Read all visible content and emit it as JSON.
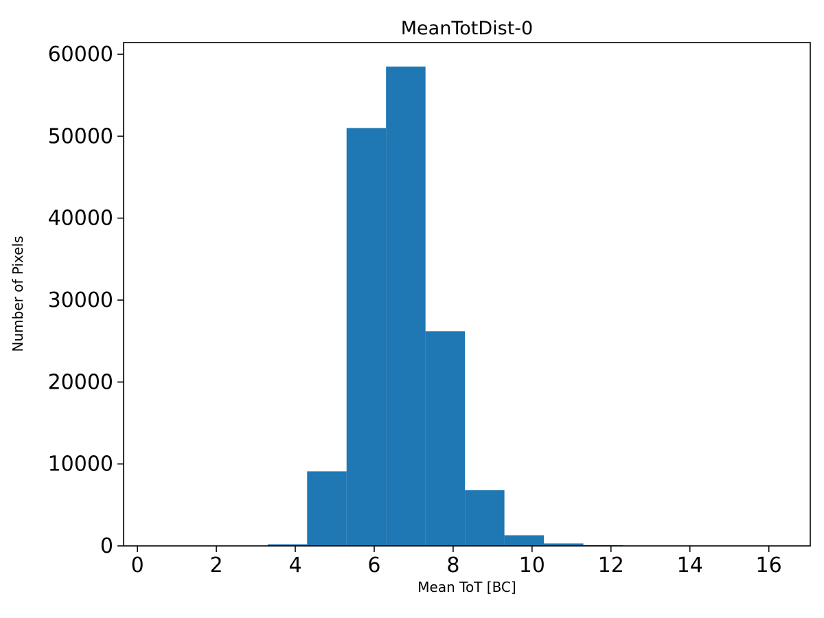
{
  "figure": {
    "background": "#ffffff"
  },
  "chart_data": {
    "type": "bar",
    "subtype": "histogram",
    "title": "MeanTotDist-0",
    "xlabel": "Mean ToT [BC]",
    "ylabel": "Number of Pixels",
    "bar_color": "#1f77b4",
    "axis_color": "#000000",
    "background": "#ffffff",
    "bin_edges": [
      3.3,
      4.3,
      5.3,
      6.3,
      7.3,
      8.3,
      9.3,
      10.3,
      11.3,
      12.3
    ],
    "counts": [
      200,
      9100,
      51000,
      58500,
      26200,
      6800,
      1300,
      300,
      100
    ],
    "xlim": [
      -0.35,
      17.05
    ],
    "ylim": [
      0,
      61425
    ],
    "xticks": [
      0,
      2,
      4,
      6,
      8,
      10,
      12,
      14,
      16
    ],
    "yticks": [
      0,
      10000,
      20000,
      30000,
      40000,
      50000,
      60000
    ],
    "xtick_labels": [
      "0",
      "2",
      "4",
      "6",
      "8",
      "10",
      "12",
      "14",
      "16"
    ],
    "ytick_labels": [
      "0",
      "10000",
      "20000",
      "30000",
      "40000",
      "50000",
      "60000"
    ],
    "grid": false,
    "legend_position": "none"
  }
}
